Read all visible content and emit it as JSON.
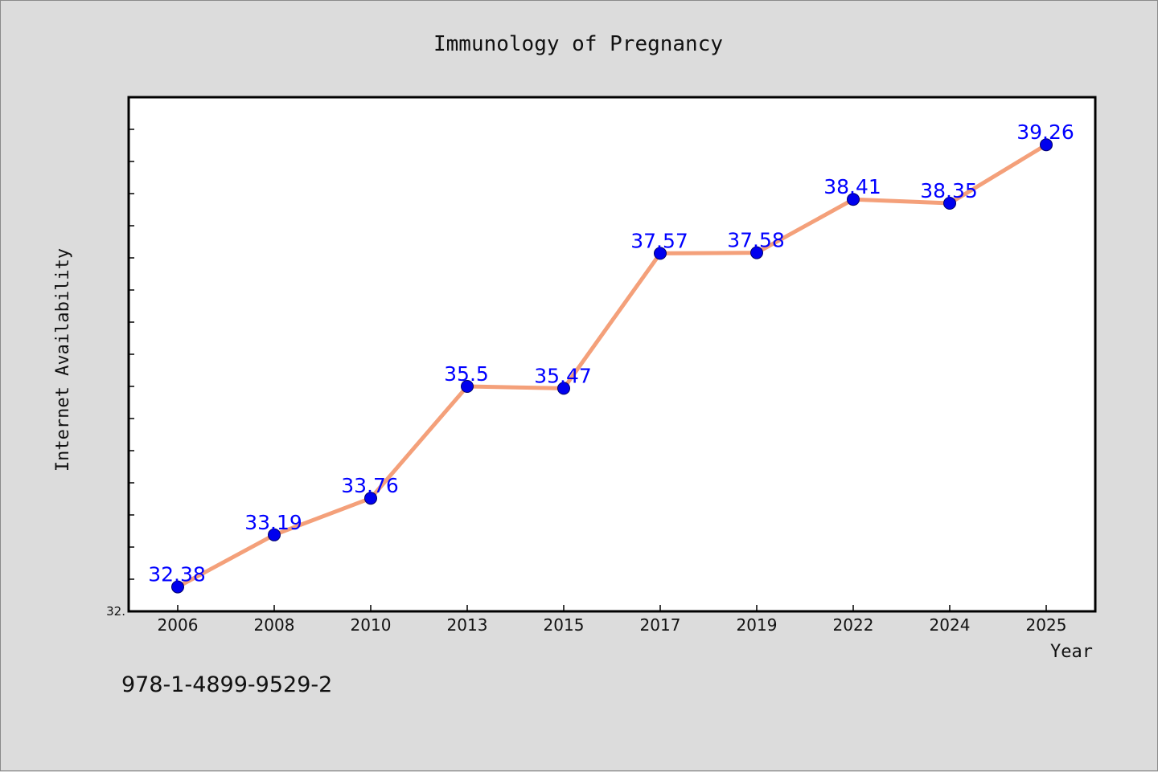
{
  "chart_data": {
    "type": "line",
    "title": "Immunology of Pregnancy",
    "xlabel": "Year",
    "ylabel": "Internet Availability",
    "categories": [
      "2006",
      "2008",
      "2010",
      "2013",
      "2015",
      "2017",
      "2019",
      "2022",
      "2024",
      "2025"
    ],
    "series": [
      {
        "values": [
          32.38,
          33.19,
          33.76,
          35.5,
          35.47,
          37.57,
          37.58,
          38.41,
          38.35,
          39.26
        ],
        "data_labels": [
          "32.38",
          "33.19",
          "33.76",
          "35.5",
          "35.47",
          "37.57",
          "37.58",
          "38.41",
          "38.35",
          "39.26"
        ]
      }
    ],
    "ylim": [
      32.0,
      40.0
    ],
    "y_tick_labels": [
      "32."
    ],
    "grid": false,
    "line_color": "#f4a07a",
    "marker_color": "#0000ee",
    "label_color": "#0000ff"
  },
  "footer": {
    "isbn": "978-1-4899-9529-2"
  }
}
